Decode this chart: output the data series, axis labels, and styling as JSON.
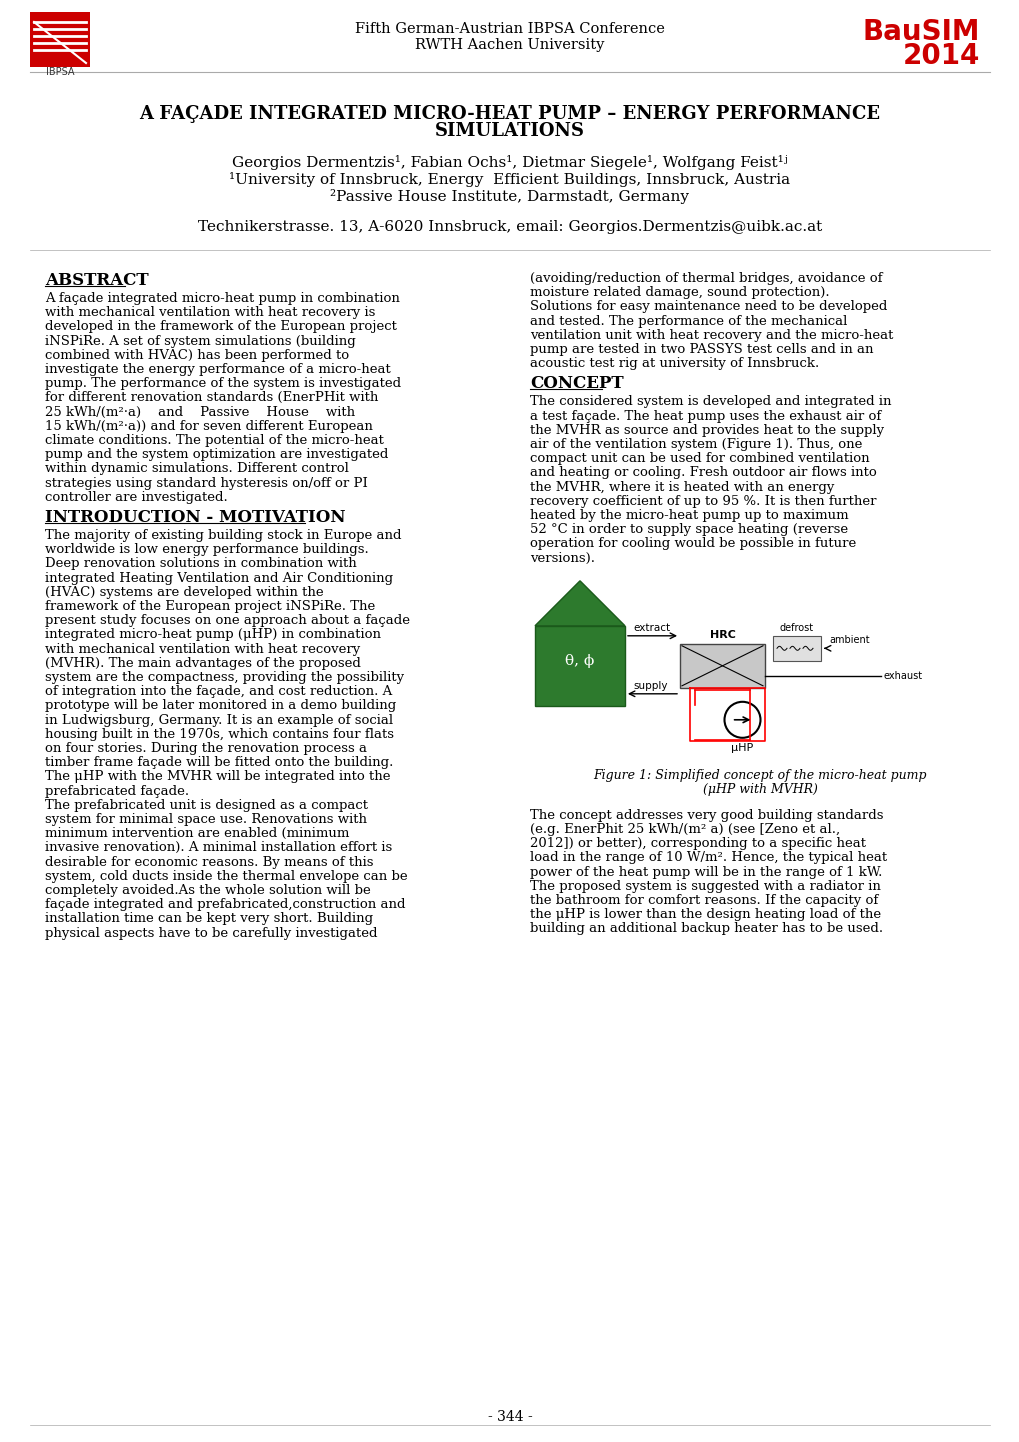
{
  "header_line1": "Fifth German-Austrian IBPSA Conference",
  "header_line2": "RWTH Aachen University",
  "bausim_line1": "BauSIM",
  "bausim_line2": "2014",
  "title_line1": "A FAÇADE INTEGRATED MICRO-HEAT PUMP – ENERGY PERFORMANCE",
  "title_line2": "SIMULATIONS",
  "authors": "Georgios Dermentzis¹, Fabian Ochs¹, Dietmar Siegele¹, Wolfgang Feist¹ʲ",
  "affil1": "¹University of Innsbruck, Energy  Efficient Buildings, Innsbruck, Austria",
  "affil2": "²Passive House Institute, Darmstadt, Germany",
  "contact": "Technikerstrasse. 13, A-6020 Innsbruck, email: Georgios.Dermentzis@uibk.ac.at",
  "abstract_title": "ABSTRACT",
  "abstract_body": "A façade integrated micro-heat pump in combination\nwith mechanical ventilation with heat recovery is\ndeveloped in the framework of the European project\niNSPiRe. A set of system simulations (building\ncombined with HVAC) has been performed to\ninvestigate the energy performance of a micro-heat\npump. The performance of the system is investigated\nfor different renovation standards (EnerPHit with\n25 kWh/(m²·a)    and    Passive    House    with\n15 kWh/(m²·a)) and for seven different European\nclimate conditions. The potential of the micro-heat\npump and the system optimization are investigated\nwithin dynamic simulations. Different control\nstrategies using standard hysteresis on/off or PI\ncontroller are investigated.",
  "intro_title": "INTRODUCTION - MOTIVATION",
  "intro_body": "The majority of existing building stock in Europe and\nworldwide is low energy performance buildings.\nDeep renovation solutions in combination with\nintegrated Heating Ventilation and Air Conditioning\n(HVAC) systems are developed within the\nframework of the European project iNSPiRe. The\npresent study focuses on one approach about a façade\nintegrated micro-heat pump (μHP) in combination\nwith mechanical ventilation with heat recovery\n(MVHR). The main advantages of the proposed\nsystem are the compactness, providing the possibility\nof integration into the façade, and cost reduction. A\nprototype will be later monitored in a demo building\nin Ludwigsburg, Germany. It is an example of social\nhousing built in the 1970s, which contains four flats\non four stories. During the renovation process a\ntimber frame façade will be fitted onto the building.\nThe μHP with the MVHR will be integrated into the\nprefabricated façade.\nThe prefabricated unit is designed as a compact\nsystem for minimal space use. Renovations with\nminimum intervention are enabled (minimum\ninvasive renovation). A minimal installation effort is\ndesirable for economic reasons. By means of this\nsystem, cold ducts inside the thermal envelope can be\ncompletely avoided.As the whole solution will be\nfaçade integrated and prefabricated,construction and\ninstallation time can be kept very short. Building\nphysical aspects have to be carefully investigated",
  "right_col_top": "(avoiding/reduction of thermal bridges, avoidance of\nmoisture related damage, sound protection).\nSolutions for easy maintenance need to be developed\nand tested. The performance of the mechanical\nventilation unit with heat recovery and the micro-heat\npump are tested in two PASSYS test cells and in an\nacoustic test rig at university of Innsbruck.",
  "concept_title": "CONCEPT",
  "concept_body": "The considered system is developed and integrated in\na test façade. The heat pump uses the exhaust air of\nthe MVHR as source and provides heat to the supply\nair of the ventilation system (Figure 1). Thus, one\ncompact unit can be used for combined ventilation\nand heating or cooling. Fresh outdoor air flows into\nthe MVHR, where it is heated with an energy\nrecovery coefficient of up to 95 %. It is then further\nheated by the micro-heat pump up to maximum\n52 °C in order to supply space heating (reverse\noperation for cooling would be possible in future\nversions).",
  "fig_caption_line1": "Figure 1: Simplified concept of the micro-heat pump",
  "fig_caption_line2": "(μHP with MVHR)",
  "right_col_bottom": "The concept addresses very good building standards\n(e.g. EnerPhit 25 kWh/(m² a) (see [Zeno et al.,\n2012]) or better), corresponding to a specific heat\nload in the range of 10 W/m². Hence, the typical heat\npower of the heat pump will be in the range of 1 kW.\nThe proposed system is suggested with a radiator in\nthe bathroom for comfort reasons. If the capacity of\nthe μHP is lower than the design heating load of the\nbuilding an additional backup heater has to be used.",
  "page_number": "- 344 -",
  "bg_color": "#ffffff",
  "text_color": "#000000",
  "red_color": "#cc0000",
  "header_color": "#555555"
}
